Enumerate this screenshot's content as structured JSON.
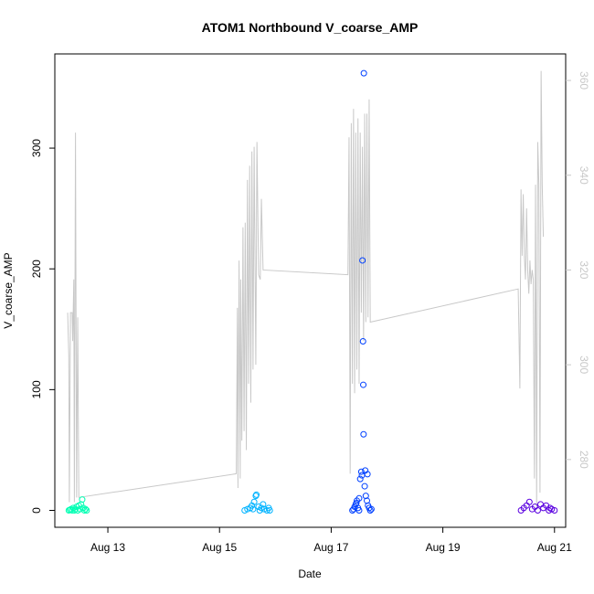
{
  "chart_data": {
    "type": "scatter",
    "title": "ATOM1 Northbound V_coarse_AMP",
    "xlabel": "Date",
    "ylabel": "V_coarse_AMP",
    "x_ticks": [
      "Aug 13",
      "Aug 15",
      "Aug 17",
      "Aug 19",
      "Aug 21"
    ],
    "x_tick_values": [
      13,
      15,
      17,
      19,
      21
    ],
    "xlim": [
      12.05,
      21.2
    ],
    "ylim": [
      -14,
      378
    ],
    "y_ticks": [
      0,
      100,
      200,
      300
    ],
    "y2lim": [
      265.7,
      365.6
    ],
    "y2_ticks": [
      280,
      300,
      320,
      340,
      360
    ],
    "grid": false,
    "legend": "none",
    "colors": {
      "scatter_groups": [
        "#00ffb3",
        "#00b3ff",
        "#0040ff",
        "#5a00e0"
      ],
      "line": "#c8c8c8",
      "right_axis": "#c8c8c8"
    },
    "series": [
      {
        "axis": "left",
        "mark": "open-circle",
        "groups": [
          {
            "color": "#00ffb3",
            "points": [
              [
                12.3,
                0
              ],
              [
                12.32,
                0.5
              ],
              [
                12.34,
                1
              ],
              [
                12.36,
                0
              ],
              [
                12.38,
                2
              ],
              [
                12.4,
                0
              ],
              [
                12.42,
                1
              ],
              [
                12.44,
                3
              ],
              [
                12.46,
                0
              ],
              [
                12.48,
                4
              ],
              [
                12.5,
                1
              ],
              [
                12.52,
                5
              ],
              [
                12.54,
                9
              ],
              [
                12.56,
                2
              ],
              [
                12.58,
                0
              ],
              [
                12.6,
                1
              ],
              [
                12.62,
                0
              ]
            ]
          },
          {
            "color": "#00b3ff",
            "points": [
              [
                15.45,
                0
              ],
              [
                15.5,
                1
              ],
              [
                15.55,
                2
              ],
              [
                15.58,
                4
              ],
              [
                15.6,
                1
              ],
              [
                15.62,
                7
              ],
              [
                15.65,
                12
              ],
              [
                15.66,
                13
              ],
              [
                15.7,
                3
              ],
              [
                15.72,
                0
              ],
              [
                15.75,
                2
              ],
              [
                15.78,
                5
              ],
              [
                15.8,
                1
              ],
              [
                15.85,
                0
              ],
              [
                15.88,
                2
              ],
              [
                15.9,
                0
              ]
            ]
          },
          {
            "color": "#0040ff",
            "points": [
              [
                17.38,
                0
              ],
              [
                17.4,
                1
              ],
              [
                17.42,
                3
              ],
              [
                17.44,
                5
              ],
              [
                17.46,
                8
              ],
              [
                17.48,
                2
              ],
              [
                17.5,
                0
              ],
              [
                17.52,
                26
              ],
              [
                17.54,
                32
              ],
              [
                17.55,
                29
              ],
              [
                17.56,
                207
              ],
              [
                17.57,
                140
              ],
              [
                17.575,
                104
              ],
              [
                17.58,
                63
              ],
              [
                17.585,
                362
              ],
              [
                17.6,
                20
              ],
              [
                17.62,
                12
              ],
              [
                17.64,
                8
              ],
              [
                17.66,
                4
              ],
              [
                17.68,
                2
              ],
              [
                17.7,
                0
              ],
              [
                17.72,
                1
              ],
              [
                17.65,
                30
              ],
              [
                17.61,
                33
              ],
              [
                17.5,
                10
              ],
              [
                17.45,
                6
              ]
            ]
          },
          {
            "color": "#5a00e0",
            "points": [
              [
                20.4,
                0
              ],
              [
                20.45,
                2
              ],
              [
                20.5,
                4
              ],
              [
                20.55,
                7
              ],
              [
                20.6,
                1
              ],
              [
                20.65,
                3
              ],
              [
                20.7,
                0
              ],
              [
                20.75,
                5
              ],
              [
                20.8,
                2
              ],
              [
                20.85,
                4
              ],
              [
                20.9,
                0
              ],
              [
                20.95,
                1
              ],
              [
                21.0,
                0
              ],
              [
                20.92,
                2
              ]
            ]
          }
        ]
      },
      {
        "axis": "right",
        "mark": "line",
        "points": [
          [
            12.28,
            311
          ],
          [
            12.3,
            302
          ],
          [
            12.31,
            271
          ],
          [
            12.33,
            311
          ],
          [
            12.34,
            311
          ],
          [
            12.36,
            311
          ],
          [
            12.37,
            305
          ],
          [
            12.39,
            318
          ],
          [
            12.4,
            271
          ],
          [
            12.42,
            349
          ],
          [
            12.44,
            272
          ],
          [
            12.46,
            310
          ],
          [
            12.48,
            272
          ],
          [
            15.3,
            277
          ],
          [
            15.32,
            312
          ],
          [
            15.33,
            274
          ],
          [
            15.35,
            322
          ],
          [
            15.37,
            276
          ],
          [
            15.38,
            318
          ],
          [
            15.4,
            284
          ],
          [
            15.42,
            329
          ],
          [
            15.44,
            286
          ],
          [
            15.46,
            330
          ],
          [
            15.48,
            282
          ],
          [
            15.5,
            339
          ],
          [
            15.52,
            296
          ],
          [
            15.54,
            342
          ],
          [
            15.56,
            292
          ],
          [
            15.58,
            345
          ],
          [
            15.6,
            299
          ],
          [
            15.62,
            346
          ],
          [
            15.65,
            300
          ],
          [
            15.67,
            347
          ],
          [
            15.7,
            319
          ],
          [
            15.73,
            318
          ],
          [
            15.75,
            335
          ],
          [
            15.78,
            320
          ],
          [
            17.3,
            319
          ],
          [
            17.32,
            348
          ],
          [
            17.34,
            277
          ],
          [
            17.36,
            351
          ],
          [
            17.38,
            296
          ],
          [
            17.4,
            354
          ],
          [
            17.42,
            294
          ],
          [
            17.44,
            349
          ],
          [
            17.46,
            299
          ],
          [
            17.48,
            352
          ],
          [
            17.5,
            296
          ],
          [
            17.52,
            349
          ],
          [
            17.54,
            311
          ],
          [
            17.56,
            346
          ],
          [
            17.58,
            305
          ],
          [
            17.6,
            353
          ],
          [
            17.62,
            309
          ],
          [
            17.64,
            353
          ],
          [
            17.66,
            310
          ],
          [
            17.68,
            356
          ],
          [
            17.7,
            309
          ],
          [
            20.35,
            316
          ],
          [
            20.38,
            295
          ],
          [
            20.4,
            337
          ],
          [
            20.42,
            323
          ],
          [
            20.44,
            336
          ],
          [
            20.46,
            323
          ],
          [
            20.48,
            318
          ],
          [
            20.5,
            333
          ],
          [
            20.52,
            320
          ],
          [
            20.54,
            315
          ],
          [
            20.56,
            322
          ],
          [
            20.58,
            317
          ],
          [
            20.6,
            320
          ],
          [
            20.62,
            318
          ],
          [
            20.64,
            276
          ],
          [
            20.66,
            338
          ],
          [
            20.68,
            270
          ],
          [
            20.7,
            347
          ],
          [
            20.72,
            338
          ],
          [
            20.74,
            273
          ],
          [
            20.76,
            362
          ],
          [
            20.78,
            338
          ],
          [
            20.8,
            327
          ]
        ]
      }
    ]
  }
}
